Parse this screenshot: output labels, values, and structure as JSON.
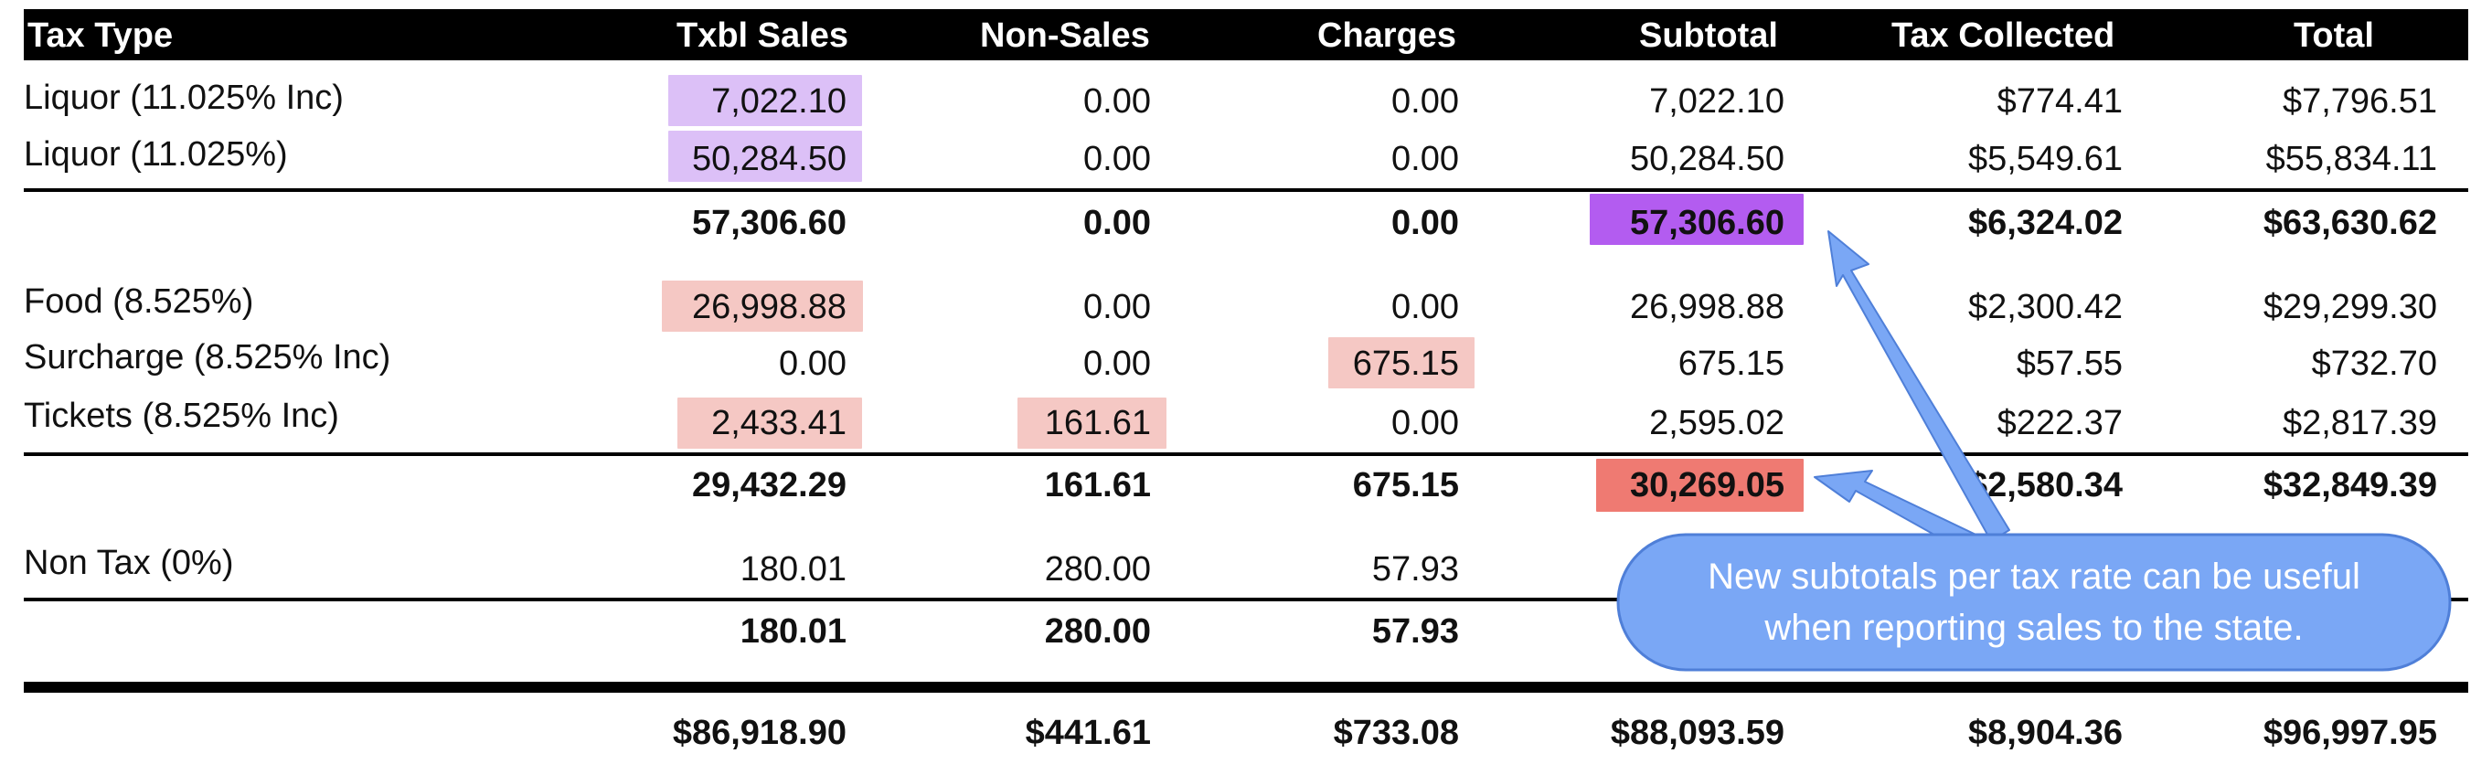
{
  "headers": [
    "Tax Type",
    "Txbl Sales",
    "Non-Sales",
    "Charges",
    "Subtotal",
    "Tax Collected",
    "Total"
  ],
  "groups": [
    {
      "rows": [
        {
          "type": "Liquor (11.025% Inc)",
          "txbl": "7,022.10",
          "nonsales": "0.00",
          "charges": "0.00",
          "subtotal": "7,022.10",
          "tax": "$774.41",
          "total": "$7,796.51"
        },
        {
          "type": "Liquor (11.025%)",
          "txbl": "50,284.50",
          "nonsales": "0.00",
          "charges": "0.00",
          "subtotal": "50,284.50",
          "tax": "$5,549.61",
          "total": "$55,834.11"
        }
      ],
      "totals": {
        "txbl": "57,306.60",
        "nonsales": "0.00",
        "charges": "0.00",
        "subtotal": "57,306.60",
        "tax": "$6,324.02",
        "total": "$63,630.62"
      }
    },
    {
      "rows": [
        {
          "type": "Food (8.525%)",
          "txbl": "26,998.88",
          "nonsales": "0.00",
          "charges": "0.00",
          "subtotal": "26,998.88",
          "tax": "$2,300.42",
          "total": "$29,299.30"
        },
        {
          "type": "Surcharge (8.525% Inc)",
          "txbl": "0.00",
          "nonsales": "0.00",
          "charges": "675.15",
          "subtotal": "675.15",
          "tax": "$57.55",
          "total": "$732.70"
        },
        {
          "type": "Tickets (8.525% Inc)",
          "txbl": "2,433.41",
          "nonsales": "161.61",
          "charges": "0.00",
          "subtotal": "2,595.02",
          "tax": "$222.37",
          "total": "$2,817.39"
        }
      ],
      "totals": {
        "txbl": "29,432.29",
        "nonsales": "161.61",
        "charges": "675.15",
        "subtotal": "30,269.05",
        "tax": "$2,580.34",
        "total": "$32,849.39"
      }
    },
    {
      "rows": [
        {
          "type": "Non Tax (0%)",
          "txbl": "180.01",
          "nonsales": "280.00",
          "charges": "57.93"
        }
      ],
      "totals": {
        "txbl": "180.01",
        "nonsales": "280.00",
        "charges": "57.93"
      }
    }
  ],
  "grand_totals": {
    "txbl": "$86,918.90",
    "nonsales": "$441.61",
    "charges": "$733.08",
    "subtotal": "$88,093.59",
    "tax": "$8,904.36",
    "total": "$96,997.95"
  },
  "callout": {
    "line1": "New subtotals per tax rate can be useful",
    "line2": "when reporting sales to the state."
  },
  "colors": {
    "liquor_highlight": "#dcc0f7",
    "liquor_subtotal": "#b35cf0",
    "pink_highlight": "#f5c8c4",
    "food_subtotal": "#ef7a72",
    "callout": "#7aa7f5",
    "arrow": "#7aa7f5"
  }
}
